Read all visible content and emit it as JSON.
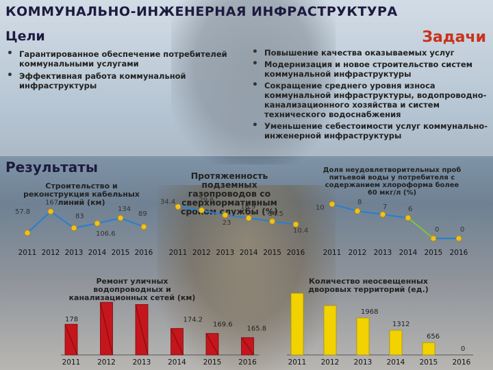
{
  "title": "КОММУНАЛЬНО-ИНЖЕНЕРНАЯ ИНФРАСТРУКТУРА",
  "goals": {
    "heading": "Цели",
    "items": [
      "Гарантированное обеспечение потребителей коммунальными услугами",
      "Эффективная работа коммунальной инфраструктуры"
    ]
  },
  "tasks": {
    "heading": "Задачи",
    "items": [
      "Повышение качества оказываемых услуг",
      "Модернизация и новое строительство систем коммунальной инфраструктуры",
      "Сокращение среднего уровня износа коммунальной инфраструктуры, водопроводно-канализационного хозяйства и систем технического водоснабжения",
      "Уменьшение себестоимости услуг коммунально-инженерной инфраструктуры"
    ]
  },
  "results_heading": "Результаты",
  "colors": {
    "line": "#2a7fd0",
    "line_alt": "#7ac142",
    "marker": "#f0c020",
    "bar_red": "#c4161c",
    "bar_yellow": "#f2d200"
  },
  "chart_data": [
    {
      "type": "line",
      "title": "Строительство и реконструкция кабельных линий (км)",
      "categories": [
        "2011",
        "2012",
        "2013",
        "2014",
        "2015",
        "2016"
      ],
      "values": [
        57.8,
        167,
        83,
        106.6,
        134,
        89
      ],
      "value_labels": [
        "57.8",
        "167",
        "83",
        "106.6",
        "134",
        "89"
      ]
    },
    {
      "type": "line",
      "title": "Протяженность подземных газопроводов со сверхнормативным сроком службы (%)",
      "categories": [
        "2011",
        "2012",
        "2013",
        "2014",
        "2015",
        "2016"
      ],
      "values": [
        34.4,
        29.6,
        23,
        18.9,
        14.5,
        10.4
      ],
      "value_labels": [
        "34.4",
        "29.6",
        "23",
        "18.9",
        "14.5",
        "10.4"
      ]
    },
    {
      "type": "line",
      "title": "Доля неудовлетворительных проб питьевой воды у потребителя с содержанием хлороформа более 60 мкг/л (%)",
      "categories": [
        "2011",
        "2012",
        "2013",
        "2014",
        "2015",
        "2016"
      ],
      "values": [
        10,
        8,
        7,
        6,
        0,
        0
      ],
      "value_labels": [
        "10",
        "8",
        "7",
        "6",
        "0",
        "0"
      ]
    },
    {
      "type": "bar",
      "title": "Ремонт уличных водопроводных и канализационных сетей (км)",
      "categories": [
        "2011",
        "2012",
        "2013",
        "2014",
        "2015",
        "2016"
      ],
      "values": [
        178,
        198,
        196,
        174.2,
        169.6,
        165.8
      ],
      "value_labels": [
        "178",
        "",
        "",
        "174.2",
        "169.6",
        "165.8"
      ]
    },
    {
      "type": "bar",
      "title": "Количество неосвещенных дворовых территорий (ед.)",
      "categories": [
        "2011",
        "2012",
        "2013",
        "2014",
        "2015",
        "2016"
      ],
      "values": [
        3280,
        2624,
        1968,
        1312,
        656,
        0
      ],
      "value_labels": [
        "",
        "",
        "1968",
        "1312",
        "656",
        "0"
      ]
    }
  ]
}
